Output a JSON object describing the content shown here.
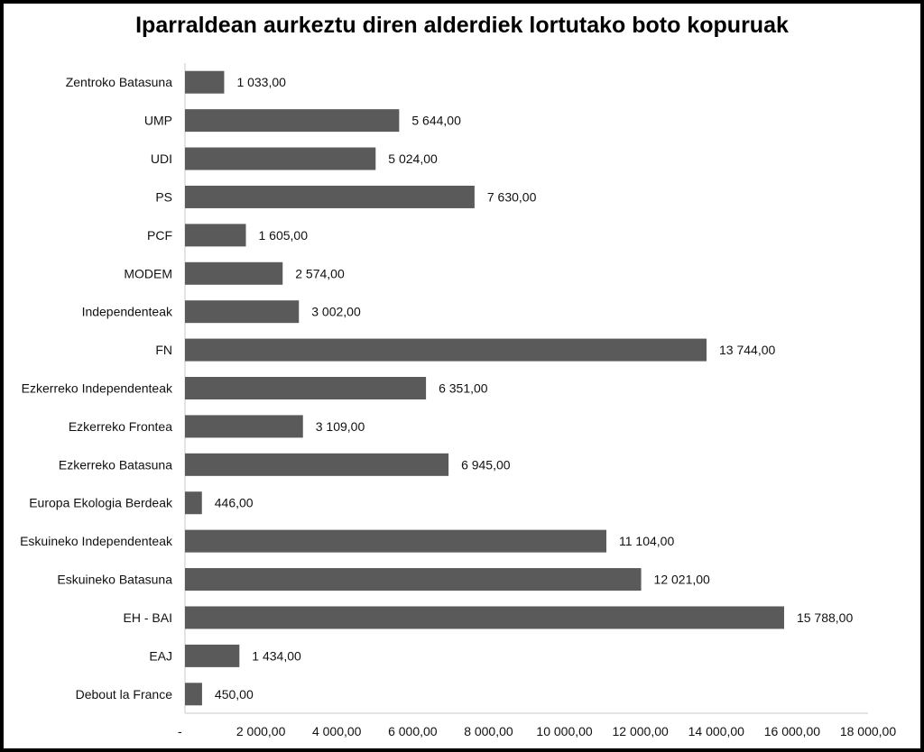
{
  "chart_data": {
    "type": "bar",
    "orientation": "horizontal",
    "title": "Iparraldean aurkeztu diren alderdiek lortutako boto kopuruak",
    "categories": [
      "Zentroko Batasuna",
      "UMP",
      "UDI",
      "PS",
      "PCF",
      "MODEM",
      "Independenteak",
      "FN",
      "Ezkerreko Independenteak",
      "Ezkerreko Frontea",
      "Ezkerreko Batasuna",
      "Europa Ekologia Berdeak",
      "Eskuineko Independenteak",
      "Eskuineko Batasuna",
      "EH - BAI",
      "EAJ",
      "Debout la France"
    ],
    "values": [
      1033,
      5644,
      5024,
      7630,
      1605,
      2574,
      3002,
      13744,
      6351,
      3109,
      6945,
      446,
      11104,
      12021,
      15788,
      1434,
      450
    ],
    "value_labels": [
      "1 033,00",
      "5 644,00",
      "5 024,00",
      "7 630,00",
      "1 605,00",
      "2 574,00",
      "3 002,00",
      "13 744,00",
      "6 351,00",
      "3 109,00",
      "6 945,00",
      "446,00",
      "11 104,00",
      "12 021,00",
      "15 788,00",
      "1 434,00",
      "450,00"
    ],
    "xlim": [
      0,
      18000
    ],
    "x_ticks": [
      0,
      2000,
      4000,
      6000,
      8000,
      10000,
      12000,
      14000,
      16000,
      18000
    ],
    "x_tick_labels": [
      "-",
      "2 000,00",
      "4 000,00",
      "6 000,00",
      "8 000,00",
      "10 000,00",
      "12 000,00",
      "14 000,00",
      "16 000,00",
      "18 000,00"
    ],
    "grid": false,
    "legend": "none",
    "bar_color": "#5a5a5a"
  }
}
